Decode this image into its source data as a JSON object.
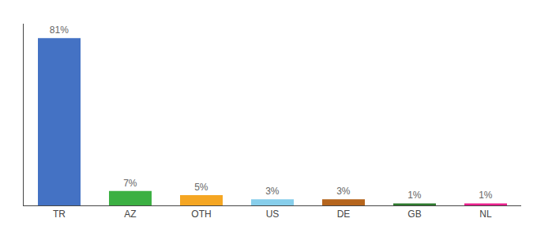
{
  "chart_data": {
    "type": "bar",
    "categories": [
      "TR",
      "AZ",
      "OTH",
      "US",
      "DE",
      "GB",
      "NL"
    ],
    "values": [
      81,
      7,
      5,
      3,
      3,
      1,
      1
    ],
    "value_labels": [
      "81%",
      "7%",
      "5%",
      "3%",
      "3%",
      "1%",
      "1%"
    ],
    "colors": [
      "#4472c4",
      "#3cb043",
      "#f5a623",
      "#87ceeb",
      "#b5651d",
      "#2d7a2d",
      "#e91e8c"
    ],
    "ylim": [
      0,
      88
    ],
    "grid": false,
    "data_labels": true,
    "tick_labels": "x"
  }
}
